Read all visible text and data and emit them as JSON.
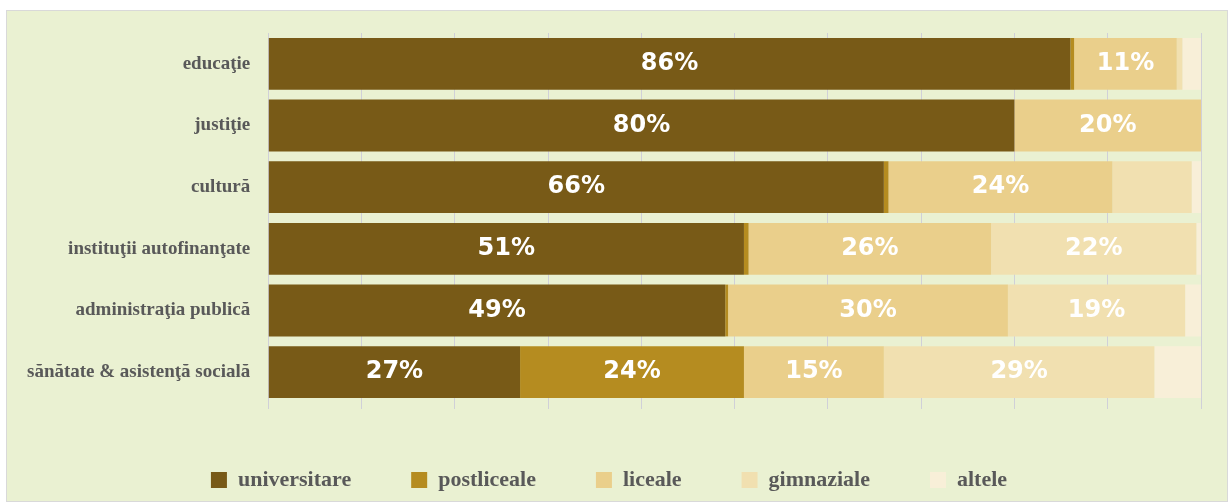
{
  "chart_data": {
    "type": "bar",
    "orientation": "horizontal",
    "stacked": true,
    "categories": [
      "educaţie",
      "justiţie",
      "cultură",
      "instituţii autofinanţate",
      "administraţia publică",
      "sănătate & asistenţă socială"
    ],
    "series": [
      {
        "name": "universitare",
        "color": "#785a17",
        "values": [
          86,
          80,
          66,
          51,
          49,
          27
        ],
        "value_labels": [
          "86%",
          "80%",
          "66%",
          "51%",
          "49%",
          "27%"
        ]
      },
      {
        "name": "postliceale",
        "color": "#b58c20",
        "values": [
          0.4,
          0,
          0.5,
          0.5,
          0.3,
          24
        ],
        "value_labels": [
          null,
          null,
          null,
          null,
          null,
          "24%"
        ]
      },
      {
        "name": "liceale",
        "color": "#eacf8b",
        "values": [
          11,
          20,
          24,
          26,
          30,
          15
        ],
        "value_labels": [
          "11%",
          "20%",
          "24%",
          "26%",
          "30%",
          "15%"
        ]
      },
      {
        "name": "gimnaziale",
        "color": "#f1e0b0",
        "values": [
          0.6,
          0,
          8.5,
          22,
          19,
          29
        ],
        "value_labels": [
          null,
          null,
          null,
          "22%",
          "19%",
          "29%"
        ]
      },
      {
        "name": "altele",
        "color": "#f8efd8",
        "values": [
          2,
          0,
          1,
          0.5,
          2,
          5
        ],
        "value_labels": [
          null,
          null,
          null,
          null,
          null,
          null
        ]
      }
    ],
    "xlim": [
      0,
      100
    ],
    "xticks": [
      {
        "value": 0,
        "label": null
      },
      {
        "value": 10,
        "label": null
      },
      {
        "value": 20,
        "label": null
      },
      {
        "value": 30,
        "label": null
      },
      {
        "value": 40,
        "label": null
      },
      {
        "value": 50,
        "label": null
      },
      {
        "value": 60,
        "label": null
      },
      {
        "value": 70,
        "label": null
      },
      {
        "value": 80,
        "label": null
      },
      {
        "value": 90,
        "label": null
      },
      {
        "value": 100,
        "label": null
      }
    ],
    "tick_labels": "y",
    "grid": "x",
    "legend": "bottom"
  }
}
